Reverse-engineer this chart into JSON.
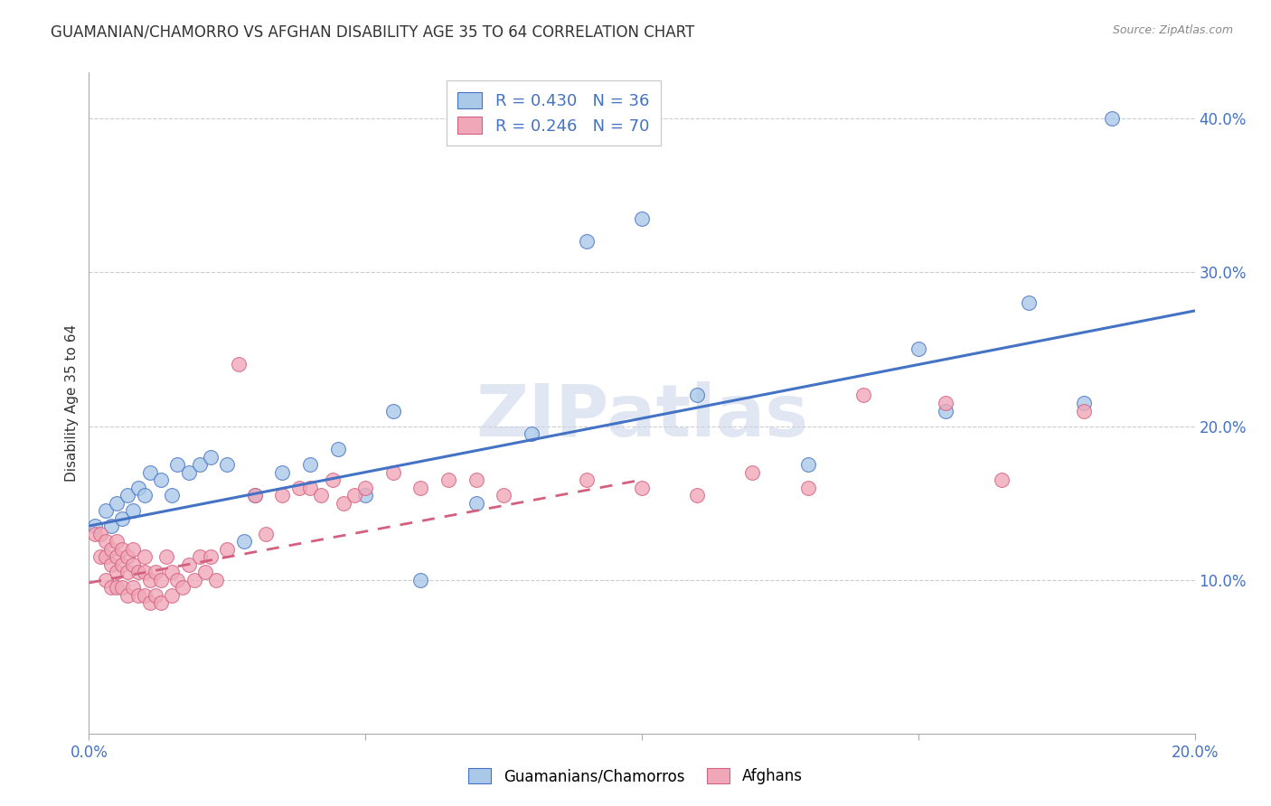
{
  "title": "GUAMANIAN/CHAMORRO VS AFGHAN DISABILITY AGE 35 TO 64 CORRELATION CHART",
  "source": "Source: ZipAtlas.com",
  "ylabel": "Disability Age 35 to 64",
  "ylabel_right_ticks": [
    "10.0%",
    "20.0%",
    "30.0%",
    "40.0%"
  ],
  "ylabel_right_vals": [
    0.1,
    0.2,
    0.3,
    0.4
  ],
  "xlim": [
    0.0,
    0.2
  ],
  "ylim": [
    0.0,
    0.43
  ],
  "legend_r1": "R = 0.430",
  "legend_n1": "N = 36",
  "legend_r2": "R = 0.246",
  "legend_n2": "N = 70",
  "color_blue": "#aac8e8",
  "color_pink": "#f0a8b8",
  "color_line_blue": "#4472c4",
  "color_line_pink": "#d46080",
  "watermark": "ZIPatlas",
  "guamanian_x": [
    0.001,
    0.003,
    0.004,
    0.005,
    0.006,
    0.007,
    0.008,
    0.009,
    0.01,
    0.011,
    0.013,
    0.015,
    0.016,
    0.018,
    0.02,
    0.022,
    0.025,
    0.028,
    0.03,
    0.035,
    0.04,
    0.045,
    0.05,
    0.055,
    0.06,
    0.07,
    0.08,
    0.09,
    0.1,
    0.11,
    0.13,
    0.15,
    0.155,
    0.17,
    0.18,
    0.185
  ],
  "guamanian_y": [
    0.135,
    0.145,
    0.135,
    0.15,
    0.14,
    0.155,
    0.145,
    0.16,
    0.155,
    0.17,
    0.165,
    0.155,
    0.175,
    0.17,
    0.175,
    0.18,
    0.175,
    0.125,
    0.155,
    0.17,
    0.175,
    0.185,
    0.155,
    0.21,
    0.1,
    0.15,
    0.195,
    0.32,
    0.335,
    0.22,
    0.175,
    0.25,
    0.21,
    0.28,
    0.215,
    0.4
  ],
  "afghan_x": [
    0.001,
    0.002,
    0.002,
    0.003,
    0.003,
    0.003,
    0.004,
    0.004,
    0.004,
    0.005,
    0.005,
    0.005,
    0.005,
    0.006,
    0.006,
    0.006,
    0.007,
    0.007,
    0.007,
    0.008,
    0.008,
    0.008,
    0.009,
    0.009,
    0.01,
    0.01,
    0.01,
    0.011,
    0.011,
    0.012,
    0.012,
    0.013,
    0.013,
    0.014,
    0.015,
    0.015,
    0.016,
    0.017,
    0.018,
    0.019,
    0.02,
    0.021,
    0.022,
    0.023,
    0.025,
    0.027,
    0.03,
    0.032,
    0.035,
    0.038,
    0.04,
    0.042,
    0.044,
    0.046,
    0.048,
    0.05,
    0.055,
    0.06,
    0.065,
    0.07,
    0.075,
    0.09,
    0.1,
    0.11,
    0.12,
    0.13,
    0.14,
    0.155,
    0.165,
    0.18
  ],
  "afghan_y": [
    0.13,
    0.115,
    0.13,
    0.1,
    0.115,
    0.125,
    0.095,
    0.11,
    0.12,
    0.095,
    0.105,
    0.115,
    0.125,
    0.095,
    0.11,
    0.12,
    0.09,
    0.105,
    0.115,
    0.095,
    0.11,
    0.12,
    0.09,
    0.105,
    0.09,
    0.105,
    0.115,
    0.085,
    0.1,
    0.09,
    0.105,
    0.085,
    0.1,
    0.115,
    0.09,
    0.105,
    0.1,
    0.095,
    0.11,
    0.1,
    0.115,
    0.105,
    0.115,
    0.1,
    0.12,
    0.24,
    0.155,
    0.13,
    0.155,
    0.16,
    0.16,
    0.155,
    0.165,
    0.15,
    0.155,
    0.16,
    0.17,
    0.16,
    0.165,
    0.165,
    0.155,
    0.165,
    0.16,
    0.155,
    0.17,
    0.16,
    0.22,
    0.215,
    0.165,
    0.21
  ],
  "blue_line_x": [
    0.0,
    0.2
  ],
  "blue_line_y": [
    0.135,
    0.275
  ],
  "pink_line_x": [
    0.0,
    0.1
  ],
  "pink_line_y": [
    0.098,
    0.165
  ]
}
